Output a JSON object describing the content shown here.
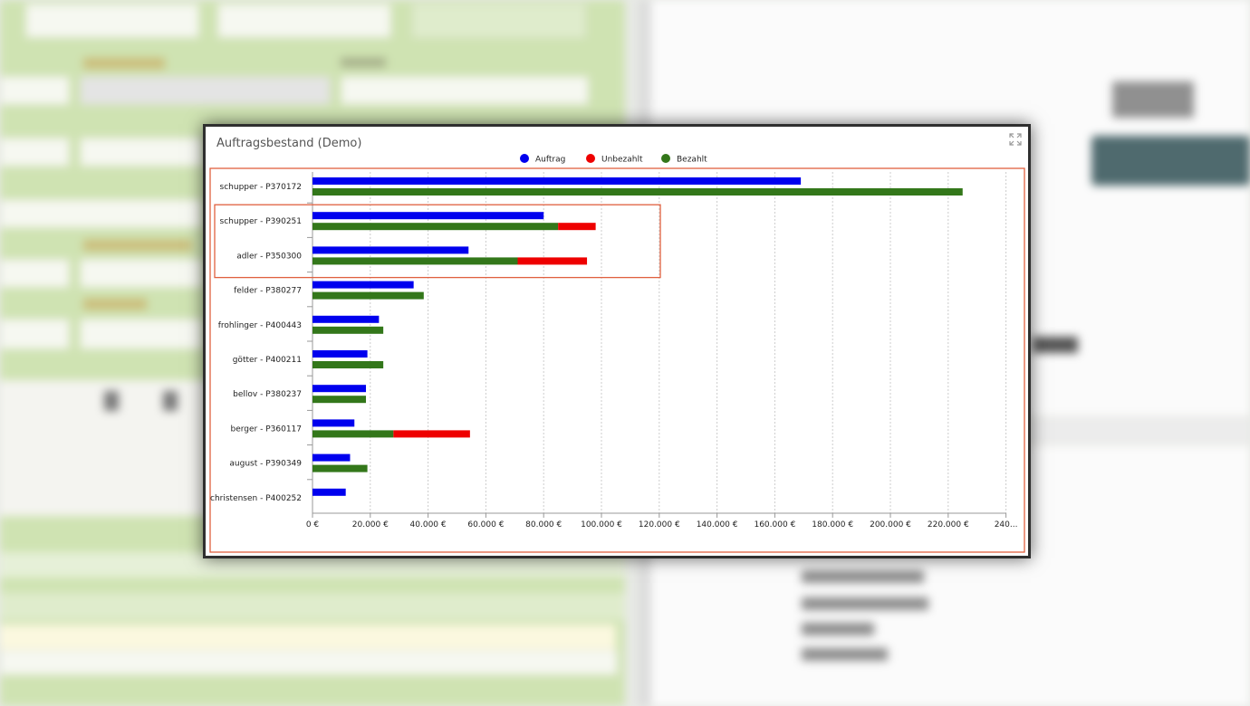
{
  "panel": {
    "title": "Auftragsbestand (Demo)"
  },
  "icons": {
    "expand": "expand-icon"
  },
  "colors": {
    "auftrag": "#0000ee",
    "unbezahlt": "#ee0000",
    "bezahlt": "#33771a",
    "highlight": "#e0603f",
    "grid": "#cccccc"
  },
  "chart_data": {
    "type": "bar",
    "orientation": "horizontal",
    "title": "Auftragsbestand (Demo)",
    "categories": [
      "schupper - P370172",
      "schupper - P390251",
      "adler - P350300",
      "felder - P380277",
      "frohlinger - P400443",
      "götter - P400211",
      "bellov - P380237",
      "berger - P360117",
      "august - P390349",
      "christensen - P400252"
    ],
    "series": [
      {
        "name": "Auftrag",
        "values": [
          169000,
          80000,
          54000,
          35000,
          23000,
          19000,
          18500,
          14500,
          13000,
          11500
        ]
      },
      {
        "name": "Bezahlt",
        "stack": "payment",
        "values": [
          225000,
          85000,
          71000,
          38500,
          24500,
          24500,
          18500,
          28000,
          19000,
          0
        ]
      },
      {
        "name": "Unbezahlt",
        "stack": "payment",
        "values": [
          0,
          13000,
          24000,
          0,
          0,
          0,
          0,
          26500,
          0,
          0
        ]
      }
    ],
    "legend": {
      "entries": [
        "Auftrag",
        "Unbezahlt",
        "Bezahlt"
      ],
      "placement": "top-center"
    },
    "xlim": [
      0,
      240000
    ],
    "xticks": [
      "0 €",
      "20.000 €",
      "40.000 €",
      "60.000 €",
      "80.000 €",
      "100.000 €",
      "120.000 €",
      "140.000 €",
      "160.000 €",
      "180.000 €",
      "200.000 €",
      "220.000 €",
      "240..."
    ],
    "grid": "vertical-dotted",
    "highlighted_categories": [
      "schupper - P390251",
      "adler - P350300"
    ]
  }
}
